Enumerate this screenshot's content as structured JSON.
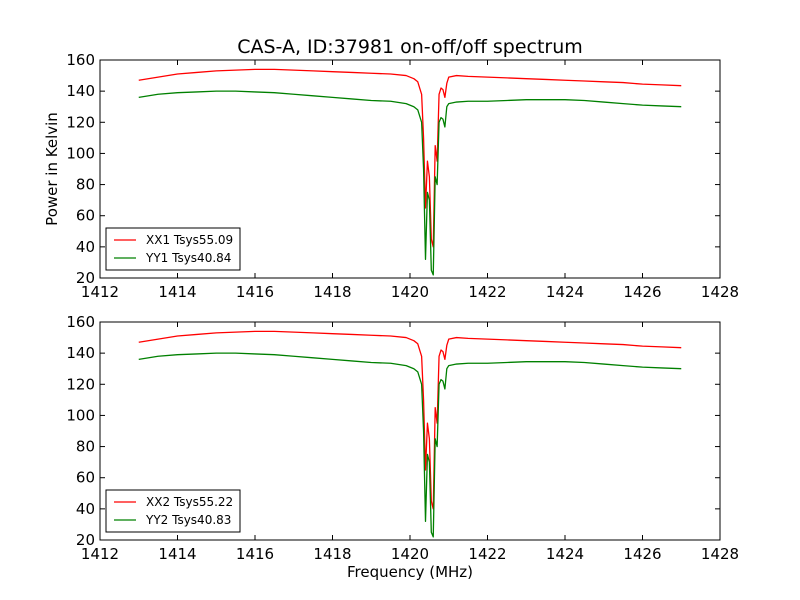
{
  "figure": {
    "title": "CAS-A, ID:37981 on-off/off spectrum",
    "ylabel": "Power in Kelvin",
    "xlabel": "Frequency (MHz)"
  },
  "colors": {
    "red": "#ff0000",
    "green": "#008000",
    "axes": "#000000",
    "background": "#ffffff"
  },
  "chart_data": [
    {
      "type": "line",
      "xlim": [
        1412,
        1428
      ],
      "ylim": [
        20,
        160
      ],
      "xticks": [
        "1412",
        "1414",
        "1416",
        "1418",
        "1420",
        "1422",
        "1424",
        "1426",
        "1428"
      ],
      "yticks": [
        "20",
        "40",
        "60",
        "80",
        "100",
        "120",
        "140",
        "160"
      ],
      "legend_position": "lower-left",
      "grid": false,
      "series": [
        {
          "name": "XX1 Tsys55.09",
          "color": "#ff0000",
          "x": [
            1413.0,
            1413.5,
            1414.0,
            1414.5,
            1415.0,
            1415.5,
            1416.0,
            1416.5,
            1417.0,
            1417.5,
            1418.0,
            1418.5,
            1419.0,
            1419.5,
            1419.9,
            1420.1,
            1420.2,
            1420.3,
            1420.35,
            1420.4,
            1420.45,
            1420.5,
            1420.55,
            1420.6,
            1420.65,
            1420.7,
            1420.75,
            1420.8,
            1420.85,
            1420.9,
            1420.95,
            1421.0,
            1421.2,
            1421.5,
            1422.0,
            1422.5,
            1423.0,
            1423.5,
            1424.0,
            1424.5,
            1425.0,
            1425.5,
            1426.0,
            1426.5,
            1427.0
          ],
          "y": [
            147,
            149,
            151,
            152,
            153,
            153.5,
            154,
            154,
            153.5,
            153,
            152.5,
            152,
            151.5,
            151,
            150,
            148,
            146,
            138,
            110,
            65,
            95,
            85,
            45,
            40,
            105,
            95,
            138,
            142,
            141,
            136,
            145,
            149,
            150,
            149.5,
            149,
            148.5,
            148,
            147.5,
            147,
            146.5,
            146,
            145.5,
            144.5,
            144,
            143.5
          ]
        },
        {
          "name": "YY1 Tsys40.84",
          "color": "#008000",
          "x": [
            1413.0,
            1413.5,
            1414.0,
            1414.5,
            1415.0,
            1415.5,
            1416.0,
            1416.5,
            1417.0,
            1417.5,
            1418.0,
            1418.5,
            1419.0,
            1419.5,
            1419.9,
            1420.1,
            1420.2,
            1420.3,
            1420.35,
            1420.4,
            1420.45,
            1420.5,
            1420.55,
            1420.6,
            1420.65,
            1420.7,
            1420.75,
            1420.8,
            1420.85,
            1420.9,
            1420.95,
            1421.0,
            1421.2,
            1421.5,
            1422.0,
            1422.5,
            1423.0,
            1423.5,
            1424.0,
            1424.5,
            1425.0,
            1425.5,
            1426.0,
            1426.5,
            1427.0
          ],
          "y": [
            136,
            138,
            139,
            139.5,
            140,
            140,
            139.5,
            139,
            138,
            137,
            136,
            135,
            134,
            133.5,
            132,
            130,
            128,
            120,
            90,
            32,
            75,
            70,
            25,
            22,
            85,
            80,
            120,
            123,
            122,
            117,
            130,
            132,
            133,
            133.5,
            133.5,
            134,
            134.5,
            134.5,
            134.5,
            134,
            133,
            132,
            131,
            130.5,
            130
          ]
        }
      ]
    },
    {
      "type": "line",
      "xlim": [
        1412,
        1428
      ],
      "ylim": [
        20,
        160
      ],
      "xticks": [
        "1412",
        "1414",
        "1416",
        "1418",
        "1420",
        "1422",
        "1424",
        "1426",
        "1428"
      ],
      "yticks": [
        "20",
        "40",
        "60",
        "80",
        "100",
        "120",
        "140",
        "160"
      ],
      "legend_position": "lower-left",
      "grid": false,
      "series": [
        {
          "name": "XX2 Tsys55.22",
          "color": "#ff0000",
          "x": [
            1413.0,
            1413.5,
            1414.0,
            1414.5,
            1415.0,
            1415.5,
            1416.0,
            1416.5,
            1417.0,
            1417.5,
            1418.0,
            1418.5,
            1419.0,
            1419.5,
            1419.9,
            1420.1,
            1420.2,
            1420.3,
            1420.35,
            1420.4,
            1420.45,
            1420.5,
            1420.55,
            1420.6,
            1420.65,
            1420.7,
            1420.75,
            1420.8,
            1420.85,
            1420.9,
            1420.95,
            1421.0,
            1421.2,
            1421.5,
            1422.0,
            1422.5,
            1423.0,
            1423.5,
            1424.0,
            1424.5,
            1425.0,
            1425.5,
            1426.0,
            1426.5,
            1427.0
          ],
          "y": [
            147,
            149,
            151,
            152,
            153,
            153.5,
            154,
            154,
            153.5,
            153,
            152.5,
            152,
            151.5,
            151,
            150,
            148,
            146,
            138,
            110,
            65,
            95,
            85,
            45,
            40,
            105,
            95,
            138,
            142,
            141,
            136,
            145,
            149,
            150,
            149.5,
            149,
            148.5,
            148,
            147.5,
            147,
            146.5,
            146,
            145.5,
            144.5,
            144,
            143.5
          ]
        },
        {
          "name": "YY2 Tsys40.83",
          "color": "#008000",
          "x": [
            1413.0,
            1413.5,
            1414.0,
            1414.5,
            1415.0,
            1415.5,
            1416.0,
            1416.5,
            1417.0,
            1417.5,
            1418.0,
            1418.5,
            1419.0,
            1419.5,
            1419.9,
            1420.1,
            1420.2,
            1420.3,
            1420.35,
            1420.4,
            1420.45,
            1420.5,
            1420.55,
            1420.6,
            1420.65,
            1420.7,
            1420.75,
            1420.8,
            1420.85,
            1420.9,
            1420.95,
            1421.0,
            1421.2,
            1421.5,
            1422.0,
            1422.5,
            1423.0,
            1423.5,
            1424.0,
            1424.5,
            1425.0,
            1425.5,
            1426.0,
            1426.5,
            1427.0
          ],
          "y": [
            136,
            138,
            139,
            139.5,
            140,
            140,
            139.5,
            139,
            138,
            137,
            136,
            135,
            134,
            133.5,
            132,
            130,
            128,
            120,
            90,
            32,
            75,
            70,
            25,
            22,
            85,
            80,
            120,
            123,
            122,
            117,
            130,
            132,
            133,
            133.5,
            133.5,
            134,
            134.5,
            134.5,
            134.5,
            134,
            133,
            132,
            131,
            130.5,
            130
          ]
        }
      ]
    }
  ]
}
